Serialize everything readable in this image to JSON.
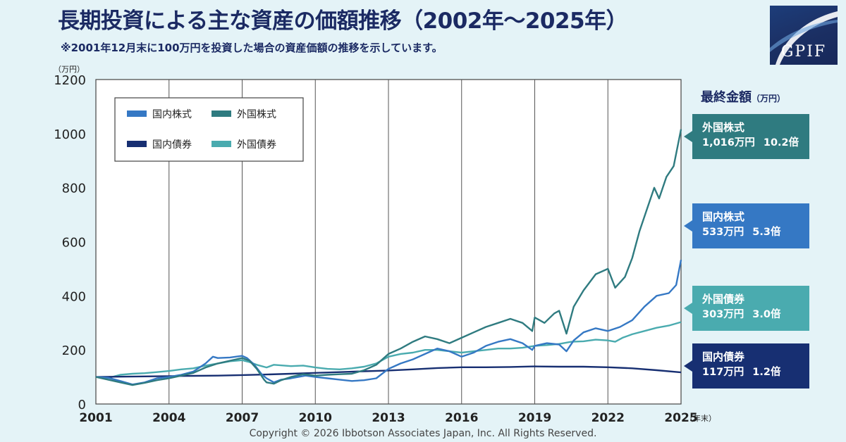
{
  "title": "長期投資による主な資産の価額推移（2002年〜2025年）",
  "subtitle": "※2001年12月末に100万円を投資した場合の資産価額の推移を示しています。",
  "logo_text": "GPIF",
  "y_unit": "（万円）",
  "x_unit": "（年末）",
  "final_title": "最終金額",
  "final_unit": "（万円）",
  "final_boxes": [
    {
      "name": "外国株式",
      "value": "1,016万円",
      "multiple": "10.2倍",
      "color": "#2f7b80"
    },
    {
      "name": "国内株式",
      "value": "533万円",
      "multiple": "5.3倍",
      "color": "#3578c4"
    },
    {
      "name": "外国債券",
      "value": "303万円",
      "multiple": "3.0倍",
      "color": "#4aabaf"
    },
    {
      "name": "国内債券",
      "value": "117万円",
      "multiple": "1.2倍",
      "color": "#172f72"
    }
  ],
  "copyright": "Copyright © 2026 Ibbotson Associates Japan, Inc. All Rights Reserved.",
  "chart_data": {
    "type": "line",
    "title": "長期投資による主な資産の価額推移（2002年〜2025年）",
    "xlabel": "（年末）",
    "ylabel": "（万円）",
    "xlim": [
      2001,
      2025
    ],
    "ylim": [
      0,
      1200
    ],
    "x_ticks": [
      2001,
      2004,
      2007,
      2010,
      2013,
      2016,
      2019,
      2022,
      2025
    ],
    "x_tick_labels": [
      "2001",
      "2004",
      "2007",
      "2010",
      "2013",
      "2016",
      "2019",
      "2022",
      "2025"
    ],
    "y_ticks": [
      0,
      200,
      400,
      600,
      800,
      1000,
      1200
    ],
    "y_tick_labels": [
      "0",
      "200",
      "400",
      "600",
      "800",
      "1000",
      "1200"
    ],
    "grid": "vertical",
    "legend_position": "top-left",
    "series": [
      {
        "name": "国内株式",
        "color": "#3578c4",
        "points": [
          [
            2001,
            100
          ],
          [
            2001.5,
            97
          ],
          [
            2002,
            85
          ],
          [
            2002.5,
            72
          ],
          [
            2003,
            80
          ],
          [
            2003.5,
            95
          ],
          [
            2004,
            100
          ],
          [
            2004.5,
            108
          ],
          [
            2005,
            120
          ],
          [
            2005.5,
            150
          ],
          [
            2005.8,
            175
          ],
          [
            2006,
            170
          ],
          [
            2006.5,
            172
          ],
          [
            2007,
            178
          ],
          [
            2007.2,
            170
          ],
          [
            2007.5,
            145
          ],
          [
            2007.8,
            110
          ],
          [
            2008,
            95
          ],
          [
            2008.3,
            80
          ],
          [
            2008.6,
            90
          ],
          [
            2009,
            95
          ],
          [
            2009.3,
            100
          ],
          [
            2009.6,
            105
          ],
          [
            2010,
            100
          ],
          [
            2010.5,
            95
          ],
          [
            2011,
            90
          ],
          [
            2011.5,
            85
          ],
          [
            2012,
            88
          ],
          [
            2012.5,
            95
          ],
          [
            2013,
            130
          ],
          [
            2013.5,
            150
          ],
          [
            2014,
            165
          ],
          [
            2014.5,
            185
          ],
          [
            2015,
            205
          ],
          [
            2015.5,
            195
          ],
          [
            2016,
            175
          ],
          [
            2016.5,
            190
          ],
          [
            2017,
            215
          ],
          [
            2017.5,
            230
          ],
          [
            2018,
            240
          ],
          [
            2018.5,
            225
          ],
          [
            2018.9,
            200
          ],
          [
            2019,
            215
          ],
          [
            2019.5,
            225
          ],
          [
            2020,
            220
          ],
          [
            2020.3,
            195
          ],
          [
            2020.6,
            235
          ],
          [
            2021,
            265
          ],
          [
            2021.5,
            280
          ],
          [
            2022,
            270
          ],
          [
            2022.5,
            285
          ],
          [
            2023,
            310
          ],
          [
            2023.5,
            360
          ],
          [
            2024,
            400
          ],
          [
            2024.5,
            410
          ],
          [
            2024.8,
            440
          ],
          [
            2025,
            533
          ]
        ]
      },
      {
        "name": "外国株式",
        "color": "#2f7b80",
        "points": [
          [
            2001,
            100
          ],
          [
            2001.5,
            90
          ],
          [
            2002,
            80
          ],
          [
            2002.5,
            70
          ],
          [
            2003,
            78
          ],
          [
            2003.5,
            88
          ],
          [
            2004,
            95
          ],
          [
            2004.5,
            105
          ],
          [
            2005,
            115
          ],
          [
            2005.5,
            135
          ],
          [
            2006,
            150
          ],
          [
            2006.5,
            160
          ],
          [
            2007,
            170
          ],
          [
            2007.3,
            160
          ],
          [
            2007.6,
            130
          ],
          [
            2007.9,
            90
          ],
          [
            2008,
            80
          ],
          [
            2008.3,
            75
          ],
          [
            2008.6,
            88
          ],
          [
            2009,
            100
          ],
          [
            2009.5,
            110
          ],
          [
            2010,
            105
          ],
          [
            2010.5,
            108
          ],
          [
            2011,
            110
          ],
          [
            2011.5,
            112
          ],
          [
            2012,
            125
          ],
          [
            2012.5,
            145
          ],
          [
            2013,
            185
          ],
          [
            2013.5,
            205
          ],
          [
            2014,
            230
          ],
          [
            2014.5,
            250
          ],
          [
            2015,
            240
          ],
          [
            2015.5,
            225
          ],
          [
            2016,
            245
          ],
          [
            2016.5,
            265
          ],
          [
            2017,
            285
          ],
          [
            2017.5,
            300
          ],
          [
            2018,
            315
          ],
          [
            2018.5,
            300
          ],
          [
            2018.9,
            270
          ],
          [
            2019,
            320
          ],
          [
            2019.4,
            300
          ],
          [
            2019.8,
            335
          ],
          [
            2020,
            345
          ],
          [
            2020.3,
            260
          ],
          [
            2020.6,
            360
          ],
          [
            2021,
            420
          ],
          [
            2021.5,
            480
          ],
          [
            2022,
            500
          ],
          [
            2022.3,
            430
          ],
          [
            2022.7,
            470
          ],
          [
            2023,
            540
          ],
          [
            2023.3,
            640
          ],
          [
            2023.6,
            720
          ],
          [
            2023.9,
            800
          ],
          [
            2024.1,
            760
          ],
          [
            2024.4,
            840
          ],
          [
            2024.7,
            880
          ],
          [
            2025,
            1016
          ]
        ]
      },
      {
        "name": "国内債券",
        "color": "#172f72",
        "points": [
          [
            2001,
            100
          ],
          [
            2002,
            101
          ],
          [
            2003,
            102
          ],
          [
            2004,
            103
          ],
          [
            2005,
            104
          ],
          [
            2006,
            105
          ],
          [
            2007,
            107
          ],
          [
            2008,
            109
          ],
          [
            2009,
            112
          ],
          [
            2010,
            115
          ],
          [
            2011,
            118
          ],
          [
            2012,
            121
          ],
          [
            2013,
            124
          ],
          [
            2014,
            128
          ],
          [
            2015,
            133
          ],
          [
            2016,
            136
          ],
          [
            2017,
            136
          ],
          [
            2018,
            137
          ],
          [
            2019,
            139
          ],
          [
            2020,
            138
          ],
          [
            2021,
            138
          ],
          [
            2022,
            136
          ],
          [
            2023,
            132
          ],
          [
            2024,
            125
          ],
          [
            2025,
            117
          ]
        ]
      },
      {
        "name": "外国債券",
        "color": "#4aabaf",
        "points": [
          [
            2001,
            100
          ],
          [
            2001.5,
            96
          ],
          [
            2002,
            108
          ],
          [
            2002.5,
            112
          ],
          [
            2003,
            114
          ],
          [
            2003.5,
            118
          ],
          [
            2004,
            122
          ],
          [
            2004.5,
            128
          ],
          [
            2005,
            132
          ],
          [
            2005.5,
            142
          ],
          [
            2006,
            150
          ],
          [
            2006.5,
            158
          ],
          [
            2007,
            162
          ],
          [
            2007.3,
            155
          ],
          [
            2007.6,
            145
          ],
          [
            2008,
            135
          ],
          [
            2008.3,
            145
          ],
          [
            2009,
            140
          ],
          [
            2009.5,
            142
          ],
          [
            2010,
            135
          ],
          [
            2010.5,
            130
          ],
          [
            2011,
            128
          ],
          [
            2011.5,
            132
          ],
          [
            2012,
            138
          ],
          [
            2012.5,
            150
          ],
          [
            2013,
            175
          ],
          [
            2013.5,
            185
          ],
          [
            2014,
            190
          ],
          [
            2014.5,
            200
          ],
          [
            2015,
            200
          ],
          [
            2015.5,
            195
          ],
          [
            2016,
            190
          ],
          [
            2016.5,
            195
          ],
          [
            2017,
            200
          ],
          [
            2017.5,
            205
          ],
          [
            2018,
            205
          ],
          [
            2018.5,
            208
          ],
          [
            2019,
            215
          ],
          [
            2019.5,
            218
          ],
          [
            2020,
            222
          ],
          [
            2020.5,
            230
          ],
          [
            2021,
            232
          ],
          [
            2021.5,
            238
          ],
          [
            2022,
            235
          ],
          [
            2022.3,
            230
          ],
          [
            2022.6,
            245
          ],
          [
            2023,
            258
          ],
          [
            2023.5,
            270
          ],
          [
            2024,
            282
          ],
          [
            2024.5,
            290
          ],
          [
            2025,
            303
          ]
        ]
      }
    ]
  }
}
